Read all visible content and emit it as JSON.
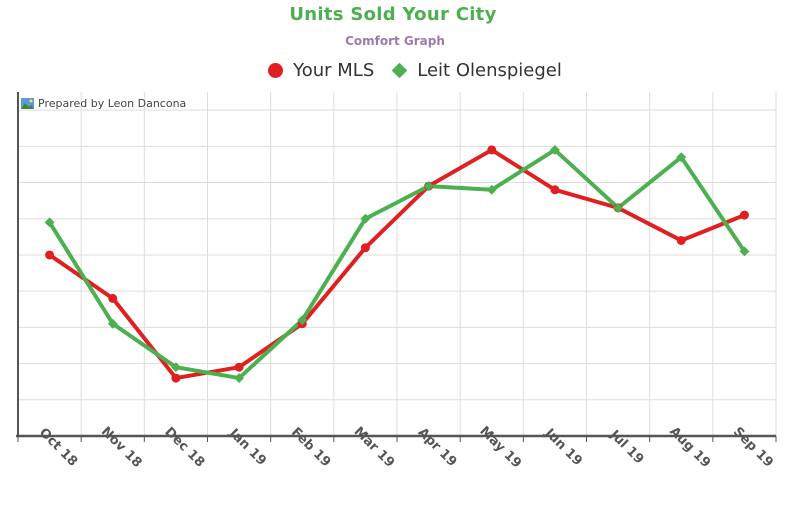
{
  "chart_data": {
    "type": "line",
    "title": "Units Sold Your City",
    "subtitle": "Comfort Graph",
    "credit": "Prepared by Leon Dancona",
    "categories": [
      "Oct 18",
      "Nov 18",
      "Dec 18",
      "Jan 19",
      "Feb 19",
      "Mar 19",
      "Apr 19",
      "May 19",
      "Jun 19",
      "Jul 19",
      "Aug 19",
      "Sep 19"
    ],
    "series": [
      {
        "name": "Your MLS",
        "color": "#e02020",
        "marker": "circle",
        "values": [
          50,
          38,
          16,
          19,
          31,
          52,
          69,
          79,
          68,
          63,
          54,
          61
        ]
      },
      {
        "name": "Leit Olenspiegel",
        "color": "#4caf50",
        "marker": "diamond",
        "values": [
          59,
          31,
          19,
          16,
          32,
          60,
          69,
          68,
          79,
          63,
          77,
          51
        ]
      }
    ],
    "ylim": [
      0,
      95
    ],
    "grid": true,
    "legend_position": "top",
    "y_tick_labels_visible": false
  }
}
